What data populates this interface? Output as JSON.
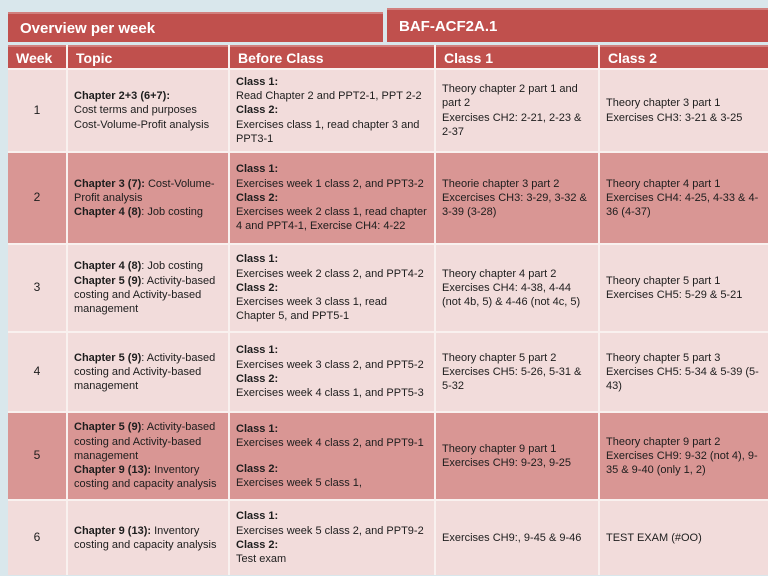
{
  "title_bar": {
    "left": "Overview per week",
    "right": "BAF-ACF2A.1"
  },
  "columns": [
    "Week",
    "Topic",
    "Before Class",
    "Class 1",
    "Class 2"
  ],
  "colors": {
    "header_red": "#C0504D",
    "row_light": "#F2DCDB",
    "row_dark": "#D99694",
    "page_background": "#D9E7EC",
    "header_text": "#FFFFFF",
    "body_text": "#1D1D1D"
  },
  "rows": [
    {
      "week": "1",
      "shade": "light",
      "topic": [
        {
          "runs": [
            {
              "b": true,
              "t": "Chapter 2+3 (6+7):"
            }
          ]
        },
        {
          "runs": [
            {
              "b": false,
              "t": "Cost terms and purposes"
            }
          ]
        },
        {
          "runs": [
            {
              "b": false,
              "t": "Cost-Volume-Profit analysis"
            }
          ]
        }
      ],
      "before_class": [
        {
          "runs": [
            {
              "b": true,
              "t": "Class 1:"
            }
          ]
        },
        {
          "runs": [
            {
              "b": false,
              "t": "Read Chapter 2 and PPT2-1, PPT 2-2"
            }
          ]
        },
        {
          "runs": [
            {
              "b": true,
              "t": "Class 2:"
            }
          ]
        },
        {
          "runs": [
            {
              "b": false,
              "t": "Exercises class 1, read chapter 3 and PPT3-1"
            }
          ]
        }
      ],
      "class1": [
        {
          "runs": [
            {
              "b": false,
              "t": "Theory chapter 2 part 1 and part 2"
            }
          ]
        },
        {
          "runs": [
            {
              "b": false,
              "t": "Exercises CH2: 2-21, 2-23 & 2-37"
            }
          ]
        }
      ],
      "class2": [
        {
          "runs": [
            {
              "b": false,
              "t": "Theory chapter 3 part 1"
            }
          ]
        },
        {
          "runs": [
            {
              "b": false,
              "t": "Exercises CH3: 3-21 & 3-25"
            }
          ]
        }
      ]
    },
    {
      "week": "2",
      "shade": "dark",
      "topic": [
        {
          "runs": [
            {
              "b": true,
              "t": "Chapter 3 (7):"
            },
            {
              "b": false,
              "t": " Cost-Volume-Profit analysis"
            }
          ]
        },
        {
          "runs": [
            {
              "b": true,
              "t": "Chapter 4 (8)"
            },
            {
              "b": false,
              "t": ": Job costing"
            }
          ]
        }
      ],
      "before_class": [
        {
          "runs": [
            {
              "b": true,
              "t": "Class 1:"
            }
          ]
        },
        {
          "runs": [
            {
              "b": false,
              "t": "Exercises week 1 class 2, and PPT3-2"
            }
          ]
        },
        {
          "runs": [
            {
              "b": true,
              "t": "Class 2:"
            }
          ]
        },
        {
          "runs": [
            {
              "b": false,
              "t": "Exercises week 2 class 1, read chapter 4 and PPT4-1, Exercise CH4: 4-22"
            }
          ]
        }
      ],
      "class1": [
        {
          "runs": [
            {
              "b": false,
              "t": "Theorie chapter 3 part 2"
            }
          ]
        },
        {
          "runs": [
            {
              "b": false,
              "t": "Excercises CH3: 3-29, 3-32 & 3-39 (3-28)"
            }
          ]
        }
      ],
      "class2": [
        {
          "runs": [
            {
              "b": false,
              "t": "Theory chapter 4 part 1"
            }
          ]
        },
        {
          "runs": [
            {
              "b": false,
              "t": "Exercises CH4: 4-25, 4-33 & 4-36 (4-37)"
            }
          ]
        }
      ]
    },
    {
      "week": "3",
      "shade": "light",
      "topic": [
        {
          "runs": [
            {
              "b": true,
              "t": "Chapter 4 (8)"
            },
            {
              "b": false,
              "t": ": Job costing"
            }
          ]
        },
        {
          "runs": [
            {
              "b": true,
              "t": "Chapter 5 (9)"
            },
            {
              "b": false,
              "t": ": Activity-based costing and Activity-based management"
            }
          ]
        }
      ],
      "before_class": [
        {
          "runs": [
            {
              "b": true,
              "t": "Class 1:"
            }
          ]
        },
        {
          "runs": [
            {
              "b": false,
              "t": "Exercises week 2 class 2, and PPT4-2"
            }
          ]
        },
        {
          "runs": [
            {
              "b": true,
              "t": "Class 2:"
            }
          ]
        },
        {
          "runs": [
            {
              "b": false,
              "t": "Exercises week 3 class 1, read Chapter 5, and PPT5-1"
            }
          ]
        }
      ],
      "class1": [
        {
          "runs": [
            {
              "b": false,
              "t": "Theory chapter 4 part 2"
            }
          ]
        },
        {
          "runs": [
            {
              "b": false,
              "t": "Exercises CH4: 4-38, 4-44 (not 4b, 5) & 4-46 (not 4c, 5)"
            }
          ]
        }
      ],
      "class2": [
        {
          "runs": [
            {
              "b": false,
              "t": "Theory chapter 5 part 1"
            }
          ]
        },
        {
          "runs": [
            {
              "b": false,
              "t": "Exercises CH5: 5-29 & 5-21"
            }
          ]
        }
      ]
    },
    {
      "week": "4",
      "shade": "light",
      "topic": [
        {
          "runs": [
            {
              "b": true,
              "t": "Chapter 5 (9)"
            },
            {
              "b": false,
              "t": ": Activity-based costing and Activity-based management"
            }
          ]
        }
      ],
      "before_class": [
        {
          "runs": [
            {
              "b": true,
              "t": "Class 1:"
            }
          ]
        },
        {
          "runs": [
            {
              "b": false,
              "t": "Exercises week 3 class 2, and PPT5-2"
            }
          ]
        },
        {
          "runs": [
            {
              "b": true,
              "t": "Class 2:"
            }
          ]
        },
        {
          "runs": [
            {
              "b": false,
              "t": "Exercises week 4 class 1, and PPT5-3"
            }
          ]
        }
      ],
      "class1": [
        {
          "runs": [
            {
              "b": false,
              "t": "Theory chapter 5 part 2"
            }
          ]
        },
        {
          "runs": [
            {
              "b": false,
              "t": "Exercises CH5: 5-26, 5-31 & 5-32"
            }
          ]
        }
      ],
      "class2": [
        {
          "runs": [
            {
              "b": false,
              "t": "Theory chapter 5 part 3"
            }
          ]
        },
        {
          "runs": [
            {
              "b": false,
              "t": "Exercises CH5: 5-34 & 5-39 (5-43)"
            }
          ]
        }
      ]
    },
    {
      "week": "5",
      "shade": "dark",
      "topic": [
        {
          "runs": [
            {
              "b": true,
              "t": "Chapter 5 (9)"
            },
            {
              "b": false,
              "t": ": Activity-based costing and Activity-based management"
            }
          ]
        },
        {
          "runs": [
            {
              "b": true,
              "t": "Chapter 9 (13):"
            },
            {
              "b": false,
              "t": " Inventory costing and capacity analysis"
            }
          ]
        }
      ],
      "before_class": [
        {
          "runs": [
            {
              "b": true,
              "t": "Class 1:"
            }
          ]
        },
        {
          "runs": [
            {
              "b": false,
              "t": "Exercises week 4 class 2, and PPT9-1"
            }
          ]
        },
        {
          "runs": []
        },
        {
          "runs": [
            {
              "b": true,
              "t": "Class 2:"
            }
          ]
        },
        {
          "runs": [
            {
              "b": false,
              "t": "Exercises week 5 class 1,"
            }
          ]
        }
      ],
      "class1": [
        {
          "runs": [
            {
              "b": false,
              "t": "Theory chapter 9 part 1"
            }
          ]
        },
        {
          "runs": [
            {
              "b": false,
              "t": "Exercises CH9: 9-23, 9-25"
            }
          ]
        }
      ],
      "class2": [
        {
          "runs": [
            {
              "b": false,
              "t": "Theory chapter 9 part 2"
            }
          ]
        },
        {
          "runs": [
            {
              "b": false,
              "t": "Exercises CH9: 9-32 (not 4), 9-35 & 9-40 (only 1, 2)"
            }
          ]
        }
      ]
    },
    {
      "week": "6",
      "shade": "light",
      "topic": [
        {
          "runs": [
            {
              "b": true,
              "t": "Chapter 9 (13):"
            },
            {
              "b": false,
              "t": " Inventory costing and capacity analysis"
            }
          ]
        }
      ],
      "before_class": [
        {
          "runs": [
            {
              "b": true,
              "t": "Class 1:"
            }
          ]
        },
        {
          "runs": [
            {
              "b": false,
              "t": "Exercises week 5 class 2, and PPT9-2"
            }
          ]
        },
        {
          "runs": [
            {
              "b": true,
              "t": "Class 2:"
            }
          ]
        },
        {
          "runs": [
            {
              "b": false,
              "t": "Test exam"
            }
          ]
        }
      ],
      "class1": [
        {
          "runs": [
            {
              "b": false,
              "t": "Exercises CH9:, 9-45 & 9-46"
            }
          ]
        }
      ],
      "class2": [
        {
          "runs": [
            {
              "b": false,
              "t": "TEST EXAM (#OO)"
            }
          ]
        }
      ]
    }
  ]
}
